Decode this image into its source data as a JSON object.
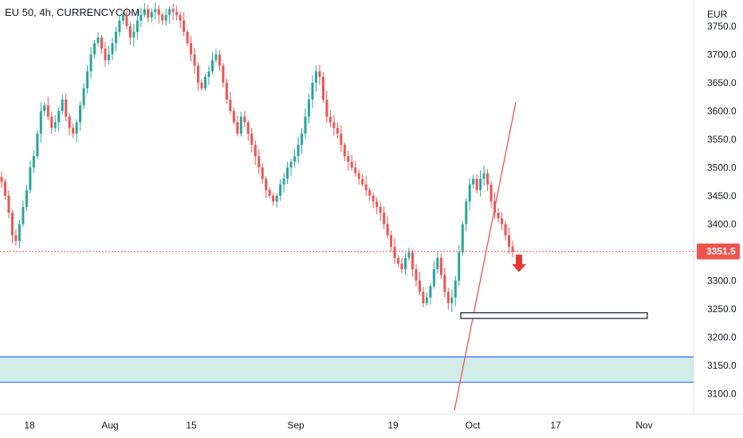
{
  "header": {
    "title": "EU 50, 4h, CURRENCYCOM"
  },
  "chart_data": {
    "type": "candlestick",
    "title": "EU 50, 4h, CURRENCYCOM",
    "currency": "EUR",
    "ylim": [
      3075,
      3785
    ],
    "y_ticks": [
      3100,
      3150,
      3200,
      3250,
      3300,
      3350,
      3400,
      3450,
      3500,
      3550,
      3600,
      3650,
      3700,
      3750
    ],
    "y_tick_labels": [
      "3100.0",
      "3150.0",
      "3200.0",
      "3250.0",
      "3300.0",
      "3350.0",
      "3400.0",
      "3450.0",
      "3500.0",
      "3550.0",
      "3600.0",
      "3650.0",
      "3700.0",
      "3750.0"
    ],
    "x_tick_labels": [
      "18",
      "Aug",
      "15",
      "Sep",
      "19",
      "Oct",
      "17",
      "Nov"
    ],
    "last_price": 3351.5,
    "last_price_label": "3351.5",
    "colors": {
      "up": "#26a69a",
      "down": "#ef5350",
      "annotation_red": "#e53935",
      "support_zone": "#b2dfdb",
      "support_border": "#2962ff"
    },
    "closes": [
      3475,
      3450,
      3420,
      3380,
      3370,
      3400,
      3430,
      3460,
      3500,
      3520,
      3560,
      3600,
      3610,
      3590,
      3570,
      3580,
      3600,
      3620,
      3590,
      3570,
      3560,
      3580,
      3610,
      3640,
      3670,
      3700,
      3720,
      3730,
      3710,
      3690,
      3700,
      3720,
      3740,
      3760,
      3770,
      3750,
      3730,
      3740,
      3760,
      3770,
      3780,
      3765,
      3775,
      3780,
      3770,
      3760,
      3770,
      3780,
      3775,
      3770,
      3760,
      3740,
      3720,
      3700,
      3680,
      3650,
      3640,
      3660,
      3670,
      3690,
      3700,
      3680,
      3650,
      3620,
      3600,
      3580,
      3560,
      3590,
      3580,
      3560,
      3540,
      3520,
      3500,
      3480,
      3460,
      3450,
      3440,
      3450,
      3470,
      3480,
      3500,
      3510,
      3520,
      3540,
      3560,
      3590,
      3620,
      3650,
      3670,
      3660,
      3620,
      3590,
      3580,
      3570,
      3560,
      3540,
      3520,
      3510,
      3500,
      3490,
      3480,
      3470,
      3460,
      3450,
      3440,
      3430,
      3420,
      3400,
      3380,
      3360,
      3340,
      3330,
      3320,
      3340,
      3350,
      3320,
      3300,
      3280,
      3260,
      3270,
      3290,
      3320,
      3340,
      3310,
      3280,
      3260,
      3270,
      3300,
      3350,
      3400,
      3440,
      3470,
      3480,
      3460,
      3480,
      3490,
      3470,
      3440,
      3420,
      3410,
      3400,
      3380,
      3360,
      3351.5
    ],
    "annotations": {
      "trend_line": {
        "from": [
          "Sep 28",
          3070
        ],
        "to": [
          "Oct 6",
          3615
        ]
      },
      "target_box": {
        "price_low": 3233,
        "price_high": 3243,
        "from": "Sep 30",
        "to": "Nov 1"
      },
      "support_zone": {
        "price_low": 3120,
        "price_high": 3165
      },
      "arrow": {
        "direction": "down",
        "price": 3315
      }
    }
  }
}
